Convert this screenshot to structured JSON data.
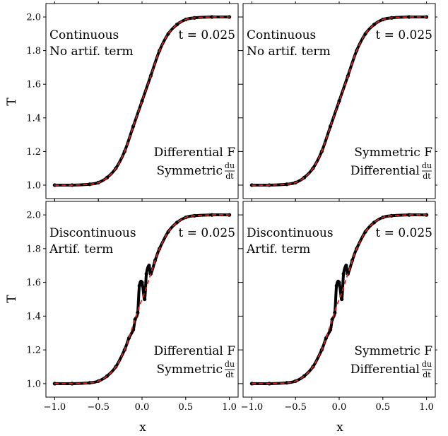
{
  "figure": {
    "ylabel": "T",
    "xlabel": "x"
  },
  "colors": {
    "numerical": "#000000",
    "analytic": "#d62728",
    "frame": "#000000"
  },
  "chart_data": [
    {
      "type": "line",
      "panel": "top-left",
      "ylabel": "T",
      "xlabel": "",
      "xlim": [
        -1.1,
        1.1
      ],
      "ylim": [
        0.92,
        2.08
      ],
      "xticks": [
        "−1.0",
        "−0.5",
        "0.0",
        "0.5",
        "1.0"
      ],
      "xtick_values": [
        -1.0,
        -0.5,
        0.0,
        0.5,
        1.0
      ],
      "yticks": [
        "1.0",
        "1.2",
        "1.4",
        "1.6",
        "1.8",
        "2.0"
      ],
      "ytick_values": [
        1.0,
        1.2,
        1.4,
        1.6,
        1.8,
        2.0
      ],
      "show_xtick_labels": false,
      "show_ytick_labels": true,
      "annotations": {
        "top_left": [
          "Continuous",
          "No artif. term"
        ],
        "top_right": "t = 0.025",
        "bottom_right": [
          "Differential F",
          "Symmetric"
        ],
        "fraction": {
          "num": "du",
          "den": "dt"
        }
      },
      "x": [
        -1.0,
        -0.8,
        -0.6,
        -0.5,
        -0.4,
        -0.3,
        -0.2,
        -0.1,
        0.0,
        0.1,
        0.2,
        0.3,
        0.4,
        0.5,
        0.6,
        0.8,
        1.0
      ],
      "series": [
        {
          "style": "dots",
          "values": [
            1.0,
            1.0,
            1.005,
            1.015,
            1.045,
            1.1,
            1.2,
            1.35,
            1.5,
            1.65,
            1.8,
            1.9,
            1.955,
            1.985,
            1.995,
            2.0,
            2.0
          ]
        },
        {
          "style": "dashed",
          "values": [
            1.0,
            1.0,
            1.005,
            1.015,
            1.045,
            1.1,
            1.2,
            1.35,
            1.5,
            1.65,
            1.8,
            1.9,
            1.955,
            1.985,
            1.995,
            2.0,
            2.0
          ]
        }
      ]
    },
    {
      "type": "line",
      "panel": "top-right",
      "ylabel": "",
      "xlabel": "",
      "xlim": [
        -1.1,
        1.1
      ],
      "ylim": [
        0.92,
        2.08
      ],
      "xticks": [
        "−1.0",
        "−0.5",
        "0.0",
        "0.5",
        "1.0"
      ],
      "xtick_values": [
        -1.0,
        -0.5,
        0.0,
        0.5,
        1.0
      ],
      "yticks": [
        "1.0",
        "1.2",
        "1.4",
        "1.6",
        "1.8",
        "2.0"
      ],
      "ytick_values": [
        1.0,
        1.2,
        1.4,
        1.6,
        1.8,
        2.0
      ],
      "show_xtick_labels": false,
      "show_ytick_labels": false,
      "annotations": {
        "top_left": [
          "Continuous",
          "No artif. term"
        ],
        "top_right": "t = 0.025",
        "bottom_right": [
          "Symmetric F",
          "Differential"
        ],
        "fraction": {
          "num": "du",
          "den": "dt"
        }
      },
      "x": [
        -1.0,
        -0.8,
        -0.6,
        -0.5,
        -0.4,
        -0.3,
        -0.2,
        -0.1,
        0.0,
        0.1,
        0.2,
        0.3,
        0.4,
        0.5,
        0.6,
        0.8,
        1.0
      ],
      "series": [
        {
          "style": "dots",
          "values": [
            1.0,
            1.0,
            1.005,
            1.015,
            1.045,
            1.1,
            1.2,
            1.35,
            1.5,
            1.65,
            1.8,
            1.9,
            1.955,
            1.985,
            1.995,
            2.0,
            2.0
          ]
        },
        {
          "style": "dashed",
          "values": [
            1.0,
            1.0,
            1.005,
            1.015,
            1.045,
            1.1,
            1.2,
            1.35,
            1.5,
            1.65,
            1.8,
            1.9,
            1.955,
            1.985,
            1.995,
            2.0,
            2.0
          ]
        }
      ]
    },
    {
      "type": "line",
      "panel": "bottom-left",
      "ylabel": "T",
      "xlabel": "x",
      "xlim": [
        -1.1,
        1.1
      ],
      "ylim": [
        0.92,
        2.08
      ],
      "xticks": [
        "−1.0",
        "−0.5",
        "0.0",
        "0.5",
        "1.0"
      ],
      "xtick_values": [
        -1.0,
        -0.5,
        0.0,
        0.5,
        1.0
      ],
      "yticks": [
        "1.0",
        "1.2",
        "1.4",
        "1.6",
        "1.8",
        "2.0"
      ],
      "ytick_values": [
        1.0,
        1.2,
        1.4,
        1.6,
        1.8,
        2.0
      ],
      "show_xtick_labels": true,
      "show_ytick_labels": true,
      "annotations": {
        "top_left": [
          "Discontinuous",
          "Artif. term"
        ],
        "top_right": "t = 0.025",
        "bottom_right": [
          "Differential F",
          "Symmetric"
        ],
        "fraction": {
          "num": "du",
          "den": "dt"
        }
      },
      "x": [
        -1.0,
        -0.8,
        -0.6,
        -0.5,
        -0.4,
        -0.3,
        -0.2,
        -0.15,
        -0.1,
        -0.08,
        -0.05,
        -0.03,
        0.0,
        0.03,
        0.05,
        0.08,
        0.1,
        0.15,
        0.2,
        0.3,
        0.4,
        0.5,
        0.6,
        0.8,
        1.0
      ],
      "series": [
        {
          "style": "dots",
          "values": [
            1.0,
            1.0,
            1.005,
            1.015,
            1.045,
            1.1,
            1.2,
            1.27,
            1.32,
            1.38,
            1.42,
            1.58,
            1.6,
            1.5,
            1.65,
            1.7,
            1.65,
            1.73,
            1.8,
            1.9,
            1.955,
            1.985,
            1.995,
            2.0,
            2.0
          ]
        },
        {
          "style": "dashed",
          "values": [
            1.0,
            1.0,
            1.005,
            1.015,
            1.045,
            1.1,
            1.2,
            1.27,
            1.35,
            1.38,
            1.43,
            1.46,
            1.5,
            1.54,
            1.57,
            1.62,
            1.65,
            1.73,
            1.8,
            1.9,
            1.955,
            1.985,
            1.995,
            2.0,
            2.0
          ]
        }
      ]
    },
    {
      "type": "line",
      "panel": "bottom-right",
      "ylabel": "",
      "xlabel": "x",
      "xlim": [
        -1.1,
        1.1
      ],
      "ylim": [
        0.92,
        2.08
      ],
      "xticks": [
        "−1.0",
        "−0.5",
        "0.0",
        "0.5",
        "1.0"
      ],
      "xtick_values": [
        -1.0,
        -0.5,
        0.0,
        0.5,
        1.0
      ],
      "yticks": [
        "1.0",
        "1.2",
        "1.4",
        "1.6",
        "1.8",
        "2.0"
      ],
      "ytick_values": [
        1.0,
        1.2,
        1.4,
        1.6,
        1.8,
        2.0
      ],
      "show_xtick_labels": true,
      "show_ytick_labels": false,
      "annotations": {
        "top_left": [
          "Discontinuous",
          "Artif. term"
        ],
        "top_right": "t = 0.025",
        "bottom_right": [
          "Symmetric F",
          "Differential"
        ],
        "fraction": {
          "num": "du",
          "den": "dt"
        }
      },
      "x": [
        -1.0,
        -0.8,
        -0.6,
        -0.5,
        -0.4,
        -0.3,
        -0.2,
        -0.15,
        -0.1,
        -0.08,
        -0.05,
        -0.03,
        0.0,
        0.03,
        0.05,
        0.08,
        0.1,
        0.15,
        0.2,
        0.3,
        0.4,
        0.5,
        0.6,
        0.8,
        1.0
      ],
      "series": [
        {
          "style": "dots",
          "values": [
            1.0,
            1.0,
            1.005,
            1.015,
            1.045,
            1.1,
            1.2,
            1.27,
            1.32,
            1.38,
            1.42,
            1.58,
            1.6,
            1.5,
            1.65,
            1.7,
            1.65,
            1.73,
            1.8,
            1.9,
            1.955,
            1.985,
            1.995,
            2.0,
            2.0
          ]
        },
        {
          "style": "dashed",
          "values": [
            1.0,
            1.0,
            1.005,
            1.015,
            1.045,
            1.1,
            1.2,
            1.27,
            1.35,
            1.38,
            1.43,
            1.46,
            1.5,
            1.54,
            1.57,
            1.62,
            1.65,
            1.73,
            1.8,
            1.9,
            1.955,
            1.985,
            1.995,
            2.0,
            2.0
          ]
        }
      ]
    }
  ]
}
